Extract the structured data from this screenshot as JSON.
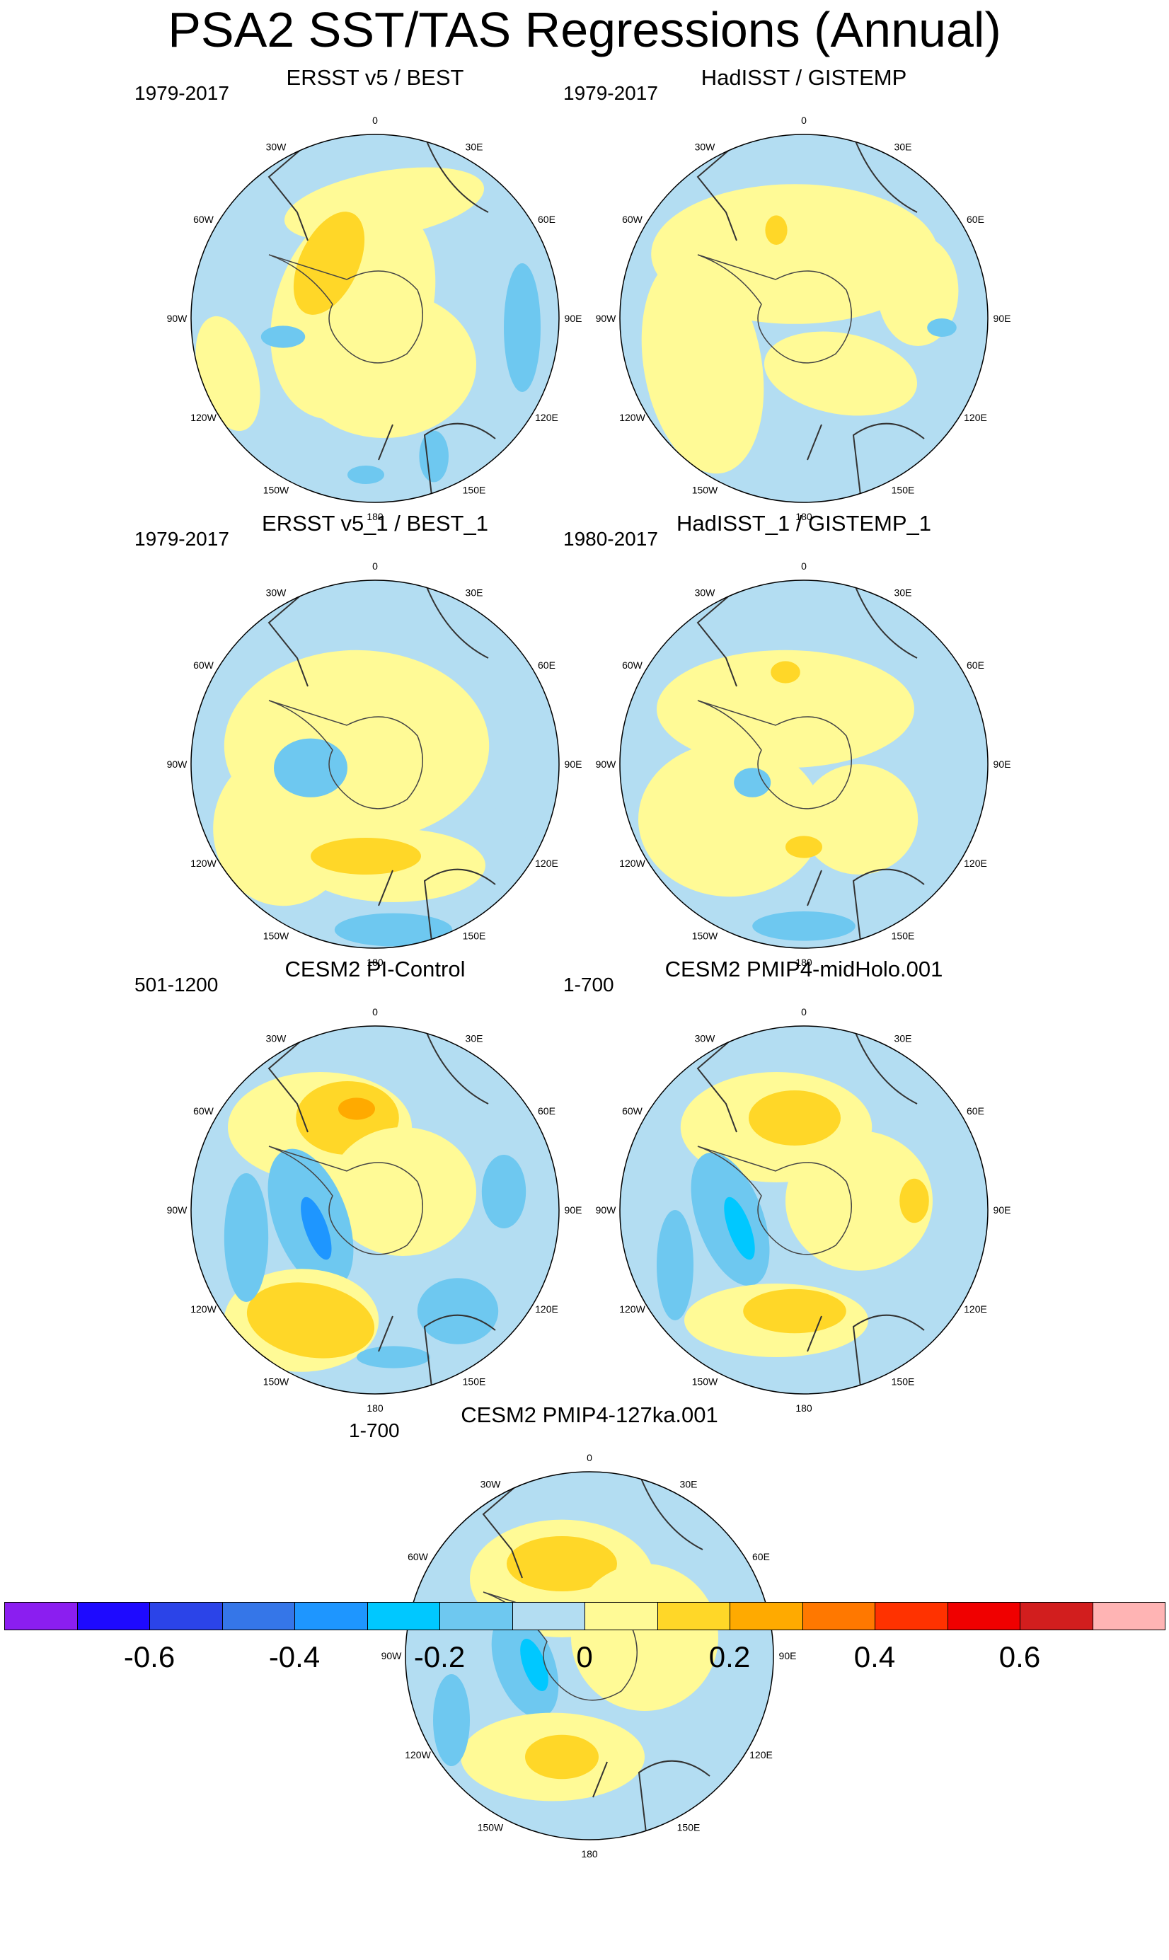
{
  "figure": {
    "title": "PSA2 SST/TAS Regressions (Annual)"
  },
  "lon_labels": [
    "0",
    "30E",
    "60E",
    "90E",
    "120E",
    "150E",
    "180",
    "150W",
    "120W",
    "90W",
    "60W",
    "30W"
  ],
  "panels": [
    {
      "title": "ERSST v5 / BEST",
      "period": "1979-2017",
      "pattern": "a"
    },
    {
      "title": "HadISST / GISTEMP",
      "period": "1979-2017",
      "pattern": "b"
    },
    {
      "title": "ERSST v5_1 / BEST_1",
      "period": "1979-2017",
      "pattern": "c"
    },
    {
      "title": "HadISST_1 / GISTEMP_1",
      "period": "1980-2017",
      "pattern": "d"
    },
    {
      "title": "CESM2 PI-Control",
      "period": "501-1200",
      "pattern": "e"
    },
    {
      "title": "CESM2 PMIP4-midHolo.001",
      "period": "1-700",
      "pattern": "f"
    },
    {
      "title": "CESM2 PMIP4-127ka.001",
      "period": "1-700",
      "pattern": "g"
    }
  ],
  "colorbar": {
    "colors": [
      "#8B1EF0",
      "#1E0AFF",
      "#2B44E8",
      "#3576E8",
      "#1E96FF",
      "#00C8FF",
      "#6EC8F0",
      "#B3DDF2",
      "#FFFA96",
      "#FFD728",
      "#FFAA00",
      "#FF7800",
      "#FF3200",
      "#F00000",
      "#D21E1E",
      "#FFB4B4"
    ],
    "labels": [
      {
        "text": "-0.6",
        "boundary": 2
      },
      {
        "text": "-0.4",
        "boundary": 4
      },
      {
        "text": "-0.2",
        "boundary": 6
      },
      {
        "text": "0",
        "boundary": 8
      },
      {
        "text": "0.2",
        "boundary": 10
      },
      {
        "text": "0.4",
        "boundary": 12
      },
      {
        "text": "0.6",
        "boundary": 14
      }
    ]
  }
}
